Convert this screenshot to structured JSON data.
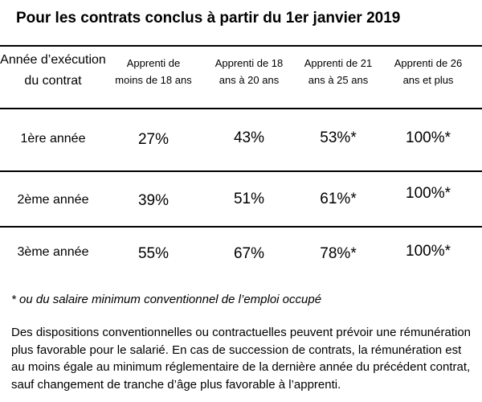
{
  "title": "Pour les contrats conclus à partir du 1er janvier 2019",
  "table": {
    "headers": [
      "Année d’exécution du contrat",
      "Apprenti de moins de 18 ans",
      "Apprenti de 18 ans à 20 ans",
      "Apprenti de 21 ans à 25 ans",
      "Apprenti de 26 ans et plus"
    ],
    "rows": [
      {
        "label": "1ère année",
        "values": [
          "27%",
          "43%",
          "53%*",
          "100%*"
        ]
      },
      {
        "label": "2ème année",
        "values": [
          "39%",
          "51%",
          "61%*",
          "100%*"
        ]
      },
      {
        "label": "3ème année",
        "values": [
          "55%",
          "67%",
          "78%*",
          "100%*"
        ]
      }
    ]
  },
  "footnote": "* ou du salaire minimum conventionnel de l’emploi occupé",
  "paragraph": "Des dispositions conventionnelles ou contractuelles peuvent prévoir une rémunération plus favorable pour le salarié. En cas de succession de contrats, la rémunération est au moins égale au minimum réglementaire de la dernière année du précédent contrat, sauf changement de tranche d’âge plus favorable à l’apprenti."
}
